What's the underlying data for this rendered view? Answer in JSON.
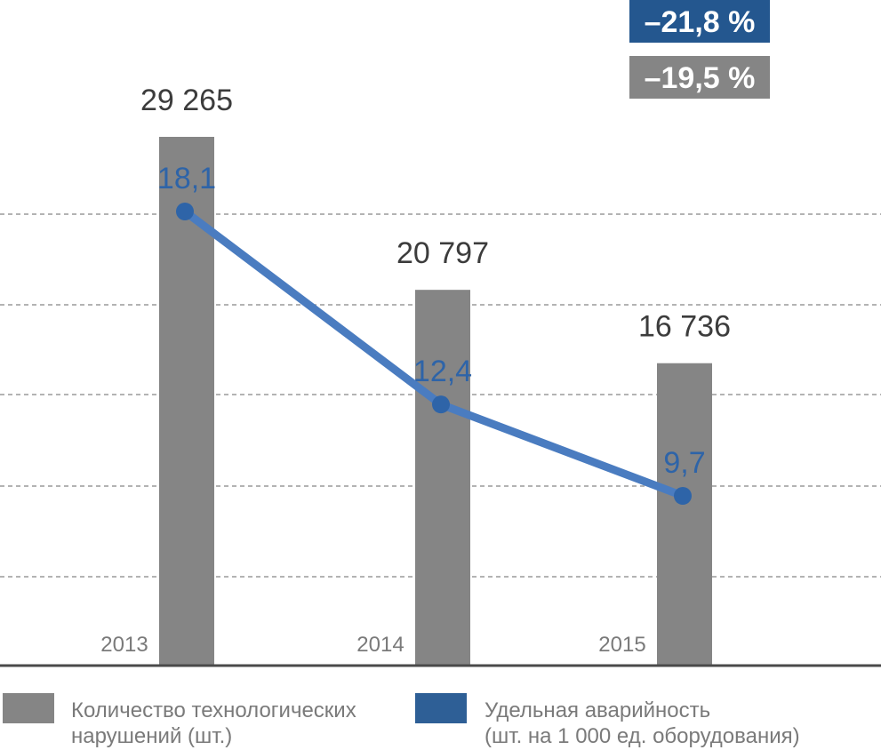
{
  "chart_data": {
    "type": "bar",
    "categories": [
      "2013",
      "2014",
      "2015"
    ],
    "series": [
      {
        "name": "Количество технологических\nнарушений (шт.)",
        "kind": "bar",
        "values": [
          29265,
          20797,
          16736
        ],
        "value_labels": [
          "29 265",
          "20 797",
          "16 736"
        ],
        "color": "#858585"
      },
      {
        "name": "Удельная аварийность\n(шт. на 1 000 ед. оборудования)",
        "kind": "line",
        "values": [
          18.1,
          12.4,
          9.7
        ],
        "value_labels": [
          "18,1",
          "12,4",
          "9,7"
        ],
        "color": "#4a7cc0",
        "marker_color": "#2e64a8"
      }
    ],
    "badges": [
      {
        "text": "–21,8 %",
        "color": "#24578f"
      },
      {
        "text": "–19,5 %",
        "color": "#858585"
      }
    ],
    "grid": "dashed horizontal",
    "legend_position": "bottom"
  }
}
